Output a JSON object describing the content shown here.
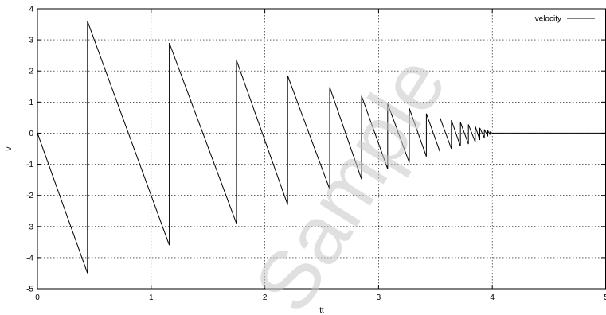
{
  "chart_data": {
    "type": "line",
    "xlabel": "tt",
    "ylabel": "v",
    "xlim": [
      0,
      5
    ],
    "ylim": [
      -5,
      4
    ],
    "xticks": [
      "0",
      "1",
      "2",
      "3",
      "4",
      "5"
    ],
    "yticks": [
      "-5",
      "-4",
      "-3",
      "-2",
      "-1",
      "0",
      "1",
      "2",
      "3",
      "4"
    ],
    "grid": true,
    "legend_position": "top-right",
    "series": [
      {
        "name": "velocity",
        "color": "#000000",
        "x": [
          0,
          0.44,
          0.44,
          1.16,
          1.16,
          1.75,
          1.75,
          2.2,
          2.2,
          2.57,
          2.57,
          2.85,
          2.85,
          3.08,
          3.08,
          3.27,
          3.27,
          3.42,
          3.42,
          3.54,
          3.54,
          3.64,
          3.64,
          3.72,
          3.72,
          3.79,
          3.79,
          3.85,
          3.85,
          3.89,
          3.89,
          3.93,
          3.93,
          3.96,
          3.96,
          3.98,
          3.98,
          4.0,
          5.0
        ],
        "y": [
          0,
          -4.5,
          3.6,
          -3.6,
          2.9,
          -2.9,
          2.35,
          -2.3,
          1.85,
          -1.8,
          1.48,
          -1.48,
          1.2,
          -1.15,
          0.95,
          -0.95,
          0.8,
          -0.75,
          0.63,
          -0.6,
          0.5,
          -0.5,
          0.42,
          -0.42,
          0.35,
          -0.35,
          0.28,
          -0.28,
          0.22,
          -0.22,
          0.17,
          -0.15,
          0.12,
          -0.1,
          0.08,
          -0.05,
          0.04,
          0,
          0
        ]
      }
    ],
    "watermark": "Sample"
  }
}
